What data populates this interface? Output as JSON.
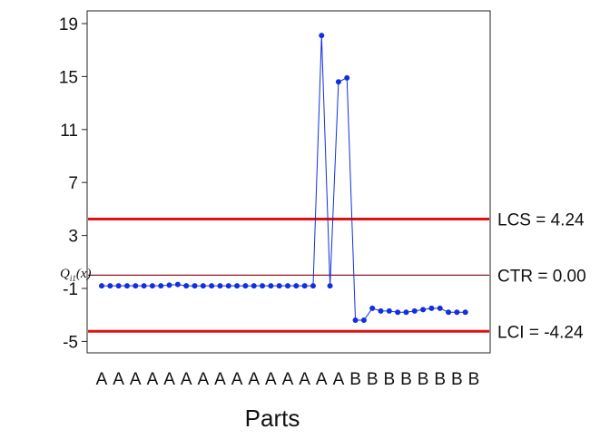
{
  "chart_data": {
    "type": "line",
    "xlabel": "Parts",
    "ylabel": "Q",
    "ylabel_subscript": "i1",
    "ylabel_suffix": "(x)",
    "ylim": [
      -6,
      20
    ],
    "yticks": [
      19,
      15,
      11,
      7,
      3,
      -1,
      -5
    ],
    "categories": [
      "A",
      "A",
      "A",
      "A",
      "A",
      "A",
      "A",
      "A",
      "A",
      "A",
      "A",
      "A",
      "A",
      "A",
      "A",
      "B",
      "B",
      "B",
      "B",
      "B",
      "B",
      "B",
      "B"
    ],
    "series": [
      {
        "color": "#1030e0",
        "x": [
          1,
          1.5,
          2,
          2.5,
          3,
          3.5,
          4,
          4.5,
          5,
          5.5,
          6,
          6.5,
          7,
          7.5,
          8,
          8.5,
          9,
          9.5,
          10,
          10.5,
          11,
          11.5,
          12,
          12.5,
          13,
          13.5,
          14,
          14.5,
          15,
          15.5,
          16,
          16.5,
          17,
          17.5,
          18,
          18.5,
          19,
          19.5,
          20,
          20.5,
          21,
          21.5,
          22,
          22.5
        ],
        "values": [
          -0.8,
          -0.8,
          -0.8,
          -0.8,
          -0.8,
          -0.8,
          -0.8,
          -0.8,
          -0.75,
          -0.7,
          -0.8,
          -0.8,
          -0.8,
          -0.8,
          -0.8,
          -0.8,
          -0.8,
          -0.8,
          -0.8,
          -0.8,
          -0.8,
          -0.8,
          -0.8,
          -0.8,
          -0.8,
          -0.8,
          18.1,
          -0.8,
          14.6,
          14.9,
          -3.4,
          -3.4,
          -2.5,
          -2.7,
          -2.7,
          -2.8,
          -2.8,
          -2.7,
          -2.6,
          -2.5,
          -2.5,
          -2.8,
          -2.8,
          -2.8
        ]
      }
    ],
    "reference_lines": [
      {
        "value": 4.24,
        "label": "LCS = 4.24",
        "color": "#e01010"
      },
      {
        "value": 0.0,
        "label": "CTR = 0.00",
        "color": "#8b1a2a"
      },
      {
        "value": -4.24,
        "label": "LCI = -4.24",
        "color": "#e01010"
      }
    ],
    "grid": false,
    "legend": "none"
  }
}
